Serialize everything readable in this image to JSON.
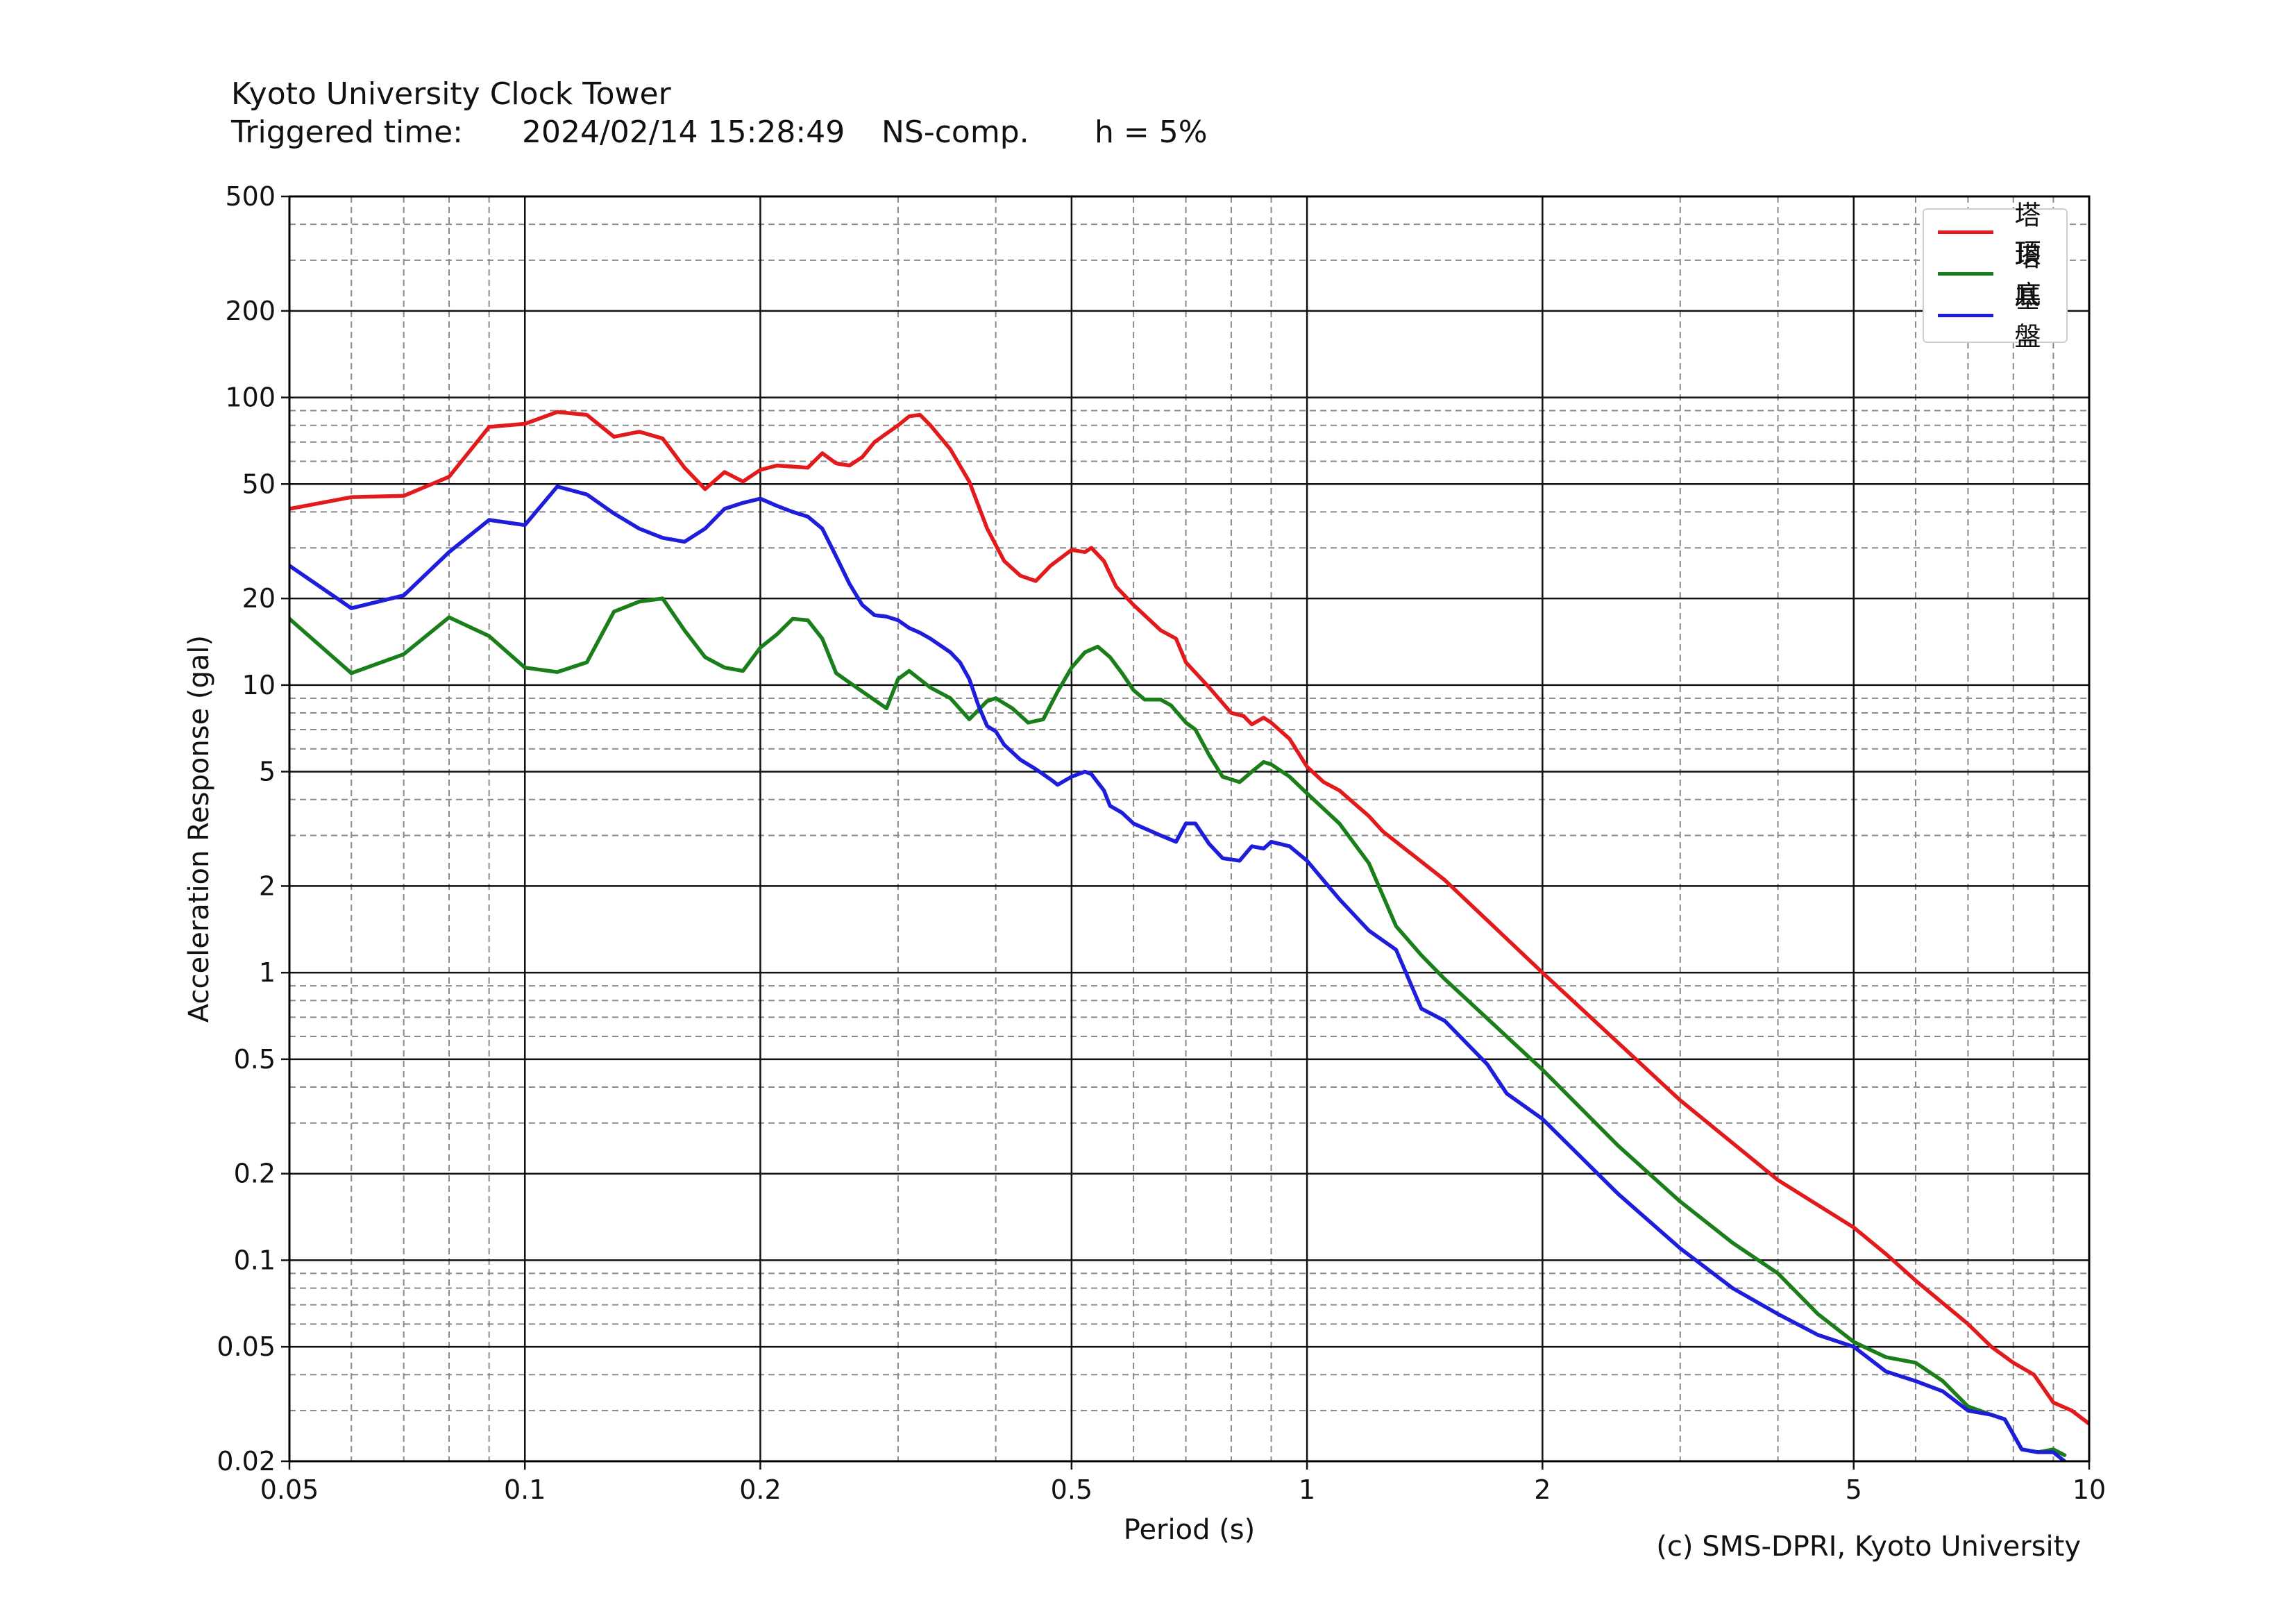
{
  "header": {
    "station": "Kyoto University Clock Tower",
    "triggered_label": "Triggered time:",
    "triggered_time": "2024/02/14 15:28:49",
    "component": "NS-comp.",
    "damping": "h = 5%"
  },
  "credit": "(c) SMS-DPRI, Kyoto University",
  "chart_data": {
    "type": "line",
    "xlabel": "Period (s)",
    "ylabel": "Acceleration Response (gal)",
    "xscale": "log",
    "yscale": "log",
    "xlim": [
      0.05,
      10
    ],
    "ylim": [
      0.02,
      500
    ],
    "grid": true,
    "legend_position": "top-right",
    "x_ticks": [
      0.05,
      0.1,
      0.2,
      0.5,
      1,
      2,
      5,
      10
    ],
    "x_tick_labels": [
      "0.05",
      "0.1",
      "0.2",
      "0.5",
      "1",
      "2",
      "5",
      "10"
    ],
    "y_ticks": [
      0.02,
      0.05,
      0.1,
      0.2,
      0.5,
      1,
      2,
      5,
      10,
      20,
      50,
      100,
      200,
      500
    ],
    "y_tick_labels": [
      "0.02",
      "0.05",
      "0.1",
      "0.2",
      "0.5",
      "1",
      "2",
      "5",
      "10",
      "20",
      "50",
      "100",
      "200",
      "500"
    ],
    "series": [
      {
        "name": "塔頂",
        "color": "#e31a1c",
        "points": [
          [
            0.05,
            41
          ],
          [
            0.06,
            45
          ],
          [
            0.07,
            45.5
          ],
          [
            0.08,
            53
          ],
          [
            0.09,
            79
          ],
          [
            0.1,
            81
          ],
          [
            0.11,
            89
          ],
          [
            0.12,
            87
          ],
          [
            0.13,
            73
          ],
          [
            0.14,
            76
          ],
          [
            0.15,
            72
          ],
          [
            0.16,
            57
          ],
          [
            0.17,
            48
          ],
          [
            0.18,
            55
          ],
          [
            0.19,
            51
          ],
          [
            0.2,
            56
          ],
          [
            0.21,
            58
          ],
          [
            0.23,
            57
          ],
          [
            0.24,
            64
          ],
          [
            0.25,
            59
          ],
          [
            0.26,
            58
          ],
          [
            0.27,
            62
          ],
          [
            0.28,
            70
          ],
          [
            0.3,
            80
          ],
          [
            0.31,
            86
          ],
          [
            0.32,
            87
          ],
          [
            0.33,
            80
          ],
          [
            0.35,
            66
          ],
          [
            0.37,
            51
          ],
          [
            0.39,
            35
          ],
          [
            0.41,
            27
          ],
          [
            0.43,
            24
          ],
          [
            0.45,
            23
          ],
          [
            0.47,
            26
          ],
          [
            0.5,
            29.5
          ],
          [
            0.52,
            29
          ],
          [
            0.53,
            30
          ],
          [
            0.55,
            27
          ],
          [
            0.57,
            22
          ],
          [
            0.6,
            19
          ],
          [
            0.65,
            15.5
          ],
          [
            0.68,
            14.5
          ],
          [
            0.7,
            12
          ],
          [
            0.75,
            9.8
          ],
          [
            0.8,
            8.0
          ],
          [
            0.83,
            7.8
          ],
          [
            0.85,
            7.3
          ],
          [
            0.88,
            7.7
          ],
          [
            0.9,
            7.4
          ],
          [
            0.95,
            6.5
          ],
          [
            1.0,
            5.2
          ],
          [
            1.05,
            4.6
          ],
          [
            1.1,
            4.3
          ],
          [
            1.2,
            3.5
          ],
          [
            1.25,
            3.1
          ],
          [
            1.5,
            2.1
          ],
          [
            2.0,
            1.0
          ],
          [
            3.0,
            0.36
          ],
          [
            4.0,
            0.19
          ],
          [
            5.0,
            0.13
          ],
          [
            5.5,
            0.105
          ],
          [
            6.0,
            0.085
          ],
          [
            7.0,
            0.06
          ],
          [
            7.5,
            0.05
          ],
          [
            8.0,
            0.044
          ],
          [
            8.5,
            0.04
          ],
          [
            9.0,
            0.032
          ],
          [
            9.5,
            0.03
          ],
          [
            10.0,
            0.027
          ]
        ]
      },
      {
        "name": "塔底",
        "color": "#1a7f1a",
        "points": [
          [
            0.05,
            17
          ],
          [
            0.06,
            11
          ],
          [
            0.07,
            12.8
          ],
          [
            0.08,
            17.2
          ],
          [
            0.09,
            14.8
          ],
          [
            0.1,
            11.5
          ],
          [
            0.11,
            11.1
          ],
          [
            0.12,
            12
          ],
          [
            0.13,
            18
          ],
          [
            0.14,
            19.5
          ],
          [
            0.15,
            20
          ],
          [
            0.16,
            15.5
          ],
          [
            0.17,
            12.5
          ],
          [
            0.18,
            11.5
          ],
          [
            0.19,
            11.2
          ],
          [
            0.2,
            13.5
          ],
          [
            0.21,
            15
          ],
          [
            0.22,
            17
          ],
          [
            0.23,
            16.8
          ],
          [
            0.24,
            14.5
          ],
          [
            0.25,
            11
          ],
          [
            0.27,
            9.5
          ],
          [
            0.29,
            8.3
          ],
          [
            0.3,
            10.5
          ],
          [
            0.31,
            11.2
          ],
          [
            0.33,
            9.8
          ],
          [
            0.35,
            9
          ],
          [
            0.37,
            7.6
          ],
          [
            0.39,
            8.8
          ],
          [
            0.4,
            9
          ],
          [
            0.42,
            8.3
          ],
          [
            0.44,
            7.4
          ],
          [
            0.46,
            7.6
          ],
          [
            0.48,
            9.5
          ],
          [
            0.5,
            11.5
          ],
          [
            0.52,
            13
          ],
          [
            0.54,
            13.6
          ],
          [
            0.56,
            12.5
          ],
          [
            0.58,
            11
          ],
          [
            0.6,
            9.6
          ],
          [
            0.62,
            8.9
          ],
          [
            0.65,
            8.9
          ],
          [
            0.67,
            8.5
          ],
          [
            0.7,
            7.4
          ],
          [
            0.72,
            7.0
          ],
          [
            0.75,
            5.7
          ],
          [
            0.78,
            4.8
          ],
          [
            0.82,
            4.6
          ],
          [
            0.85,
            5.0
          ],
          [
            0.88,
            5.4
          ],
          [
            0.9,
            5.3
          ],
          [
            0.95,
            4.8
          ],
          [
            1.0,
            4.2
          ],
          [
            1.1,
            3.3
          ],
          [
            1.2,
            2.4
          ],
          [
            1.3,
            1.45
          ],
          [
            1.4,
            1.15
          ],
          [
            1.5,
            0.95
          ],
          [
            2.0,
            0.46
          ],
          [
            2.5,
            0.25
          ],
          [
            3.0,
            0.16
          ],
          [
            3.5,
            0.115
          ],
          [
            4.0,
            0.09
          ],
          [
            4.5,
            0.065
          ],
          [
            5.0,
            0.052
          ],
          [
            5.5,
            0.046
          ],
          [
            6.0,
            0.044
          ],
          [
            6.5,
            0.038
          ],
          [
            7.0,
            0.031
          ],
          [
            7.5,
            0.029
          ],
          [
            7.8,
            0.028
          ],
          [
            8.2,
            0.022
          ],
          [
            8.6,
            0.0215
          ],
          [
            9.0,
            0.022
          ],
          [
            9.3,
            0.021
          ]
        ]
      },
      {
        "name": "基盤",
        "color": "#1d1ddb",
        "points": [
          [
            0.05,
            26
          ],
          [
            0.06,
            18.5
          ],
          [
            0.07,
            20.5
          ],
          [
            0.08,
            29
          ],
          [
            0.09,
            37.5
          ],
          [
            0.1,
            36
          ],
          [
            0.11,
            49
          ],
          [
            0.12,
            46
          ],
          [
            0.13,
            39.5
          ],
          [
            0.14,
            35
          ],
          [
            0.15,
            32.5
          ],
          [
            0.16,
            31.5
          ],
          [
            0.17,
            35
          ],
          [
            0.18,
            41
          ],
          [
            0.19,
            43
          ],
          [
            0.2,
            44.5
          ],
          [
            0.21,
            42
          ],
          [
            0.22,
            40
          ],
          [
            0.23,
            38.5
          ],
          [
            0.24,
            35
          ],
          [
            0.25,
            28
          ],
          [
            0.26,
            22.5
          ],
          [
            0.27,
            19
          ],
          [
            0.28,
            17.5
          ],
          [
            0.29,
            17.3
          ],
          [
            0.3,
            16.8
          ],
          [
            0.31,
            15.8
          ],
          [
            0.32,
            15.2
          ],
          [
            0.33,
            14.5
          ],
          [
            0.35,
            13
          ],
          [
            0.36,
            12
          ],
          [
            0.37,
            10.5
          ],
          [
            0.38,
            8.5
          ],
          [
            0.39,
            7.2
          ],
          [
            0.4,
            6.9
          ],
          [
            0.41,
            6.2
          ],
          [
            0.43,
            5.5
          ],
          [
            0.45,
            5.1
          ],
          [
            0.47,
            4.7
          ],
          [
            0.48,
            4.5
          ],
          [
            0.5,
            4.8
          ],
          [
            0.52,
            5.0
          ],
          [
            0.53,
            4.9
          ],
          [
            0.55,
            4.3
          ],
          [
            0.56,
            3.8
          ],
          [
            0.58,
            3.6
          ],
          [
            0.6,
            3.3
          ],
          [
            0.65,
            3.0
          ],
          [
            0.68,
            2.85
          ],
          [
            0.7,
            3.3
          ],
          [
            0.72,
            3.3
          ],
          [
            0.75,
            2.8
          ],
          [
            0.78,
            2.5
          ],
          [
            0.82,
            2.45
          ],
          [
            0.85,
            2.75
          ],
          [
            0.88,
            2.7
          ],
          [
            0.9,
            2.85
          ],
          [
            0.95,
            2.75
          ],
          [
            1.0,
            2.45
          ],
          [
            1.1,
            1.8
          ],
          [
            1.2,
            1.4
          ],
          [
            1.3,
            1.2
          ],
          [
            1.4,
            0.75
          ],
          [
            1.5,
            0.68
          ],
          [
            1.7,
            0.48
          ],
          [
            1.8,
            0.38
          ],
          [
            2.0,
            0.31
          ],
          [
            2.5,
            0.17
          ],
          [
            3.0,
            0.11
          ],
          [
            3.5,
            0.08
          ],
          [
            4.0,
            0.065
          ],
          [
            4.5,
            0.055
          ],
          [
            5.0,
            0.05
          ],
          [
            5.5,
            0.041
          ],
          [
            6.0,
            0.038
          ],
          [
            6.5,
            0.035
          ],
          [
            7.0,
            0.03
          ],
          [
            7.5,
            0.029
          ],
          [
            7.8,
            0.028
          ],
          [
            8.2,
            0.022
          ],
          [
            8.6,
            0.0215
          ],
          [
            9.0,
            0.0215
          ],
          [
            9.3,
            0.02
          ]
        ]
      }
    ]
  }
}
